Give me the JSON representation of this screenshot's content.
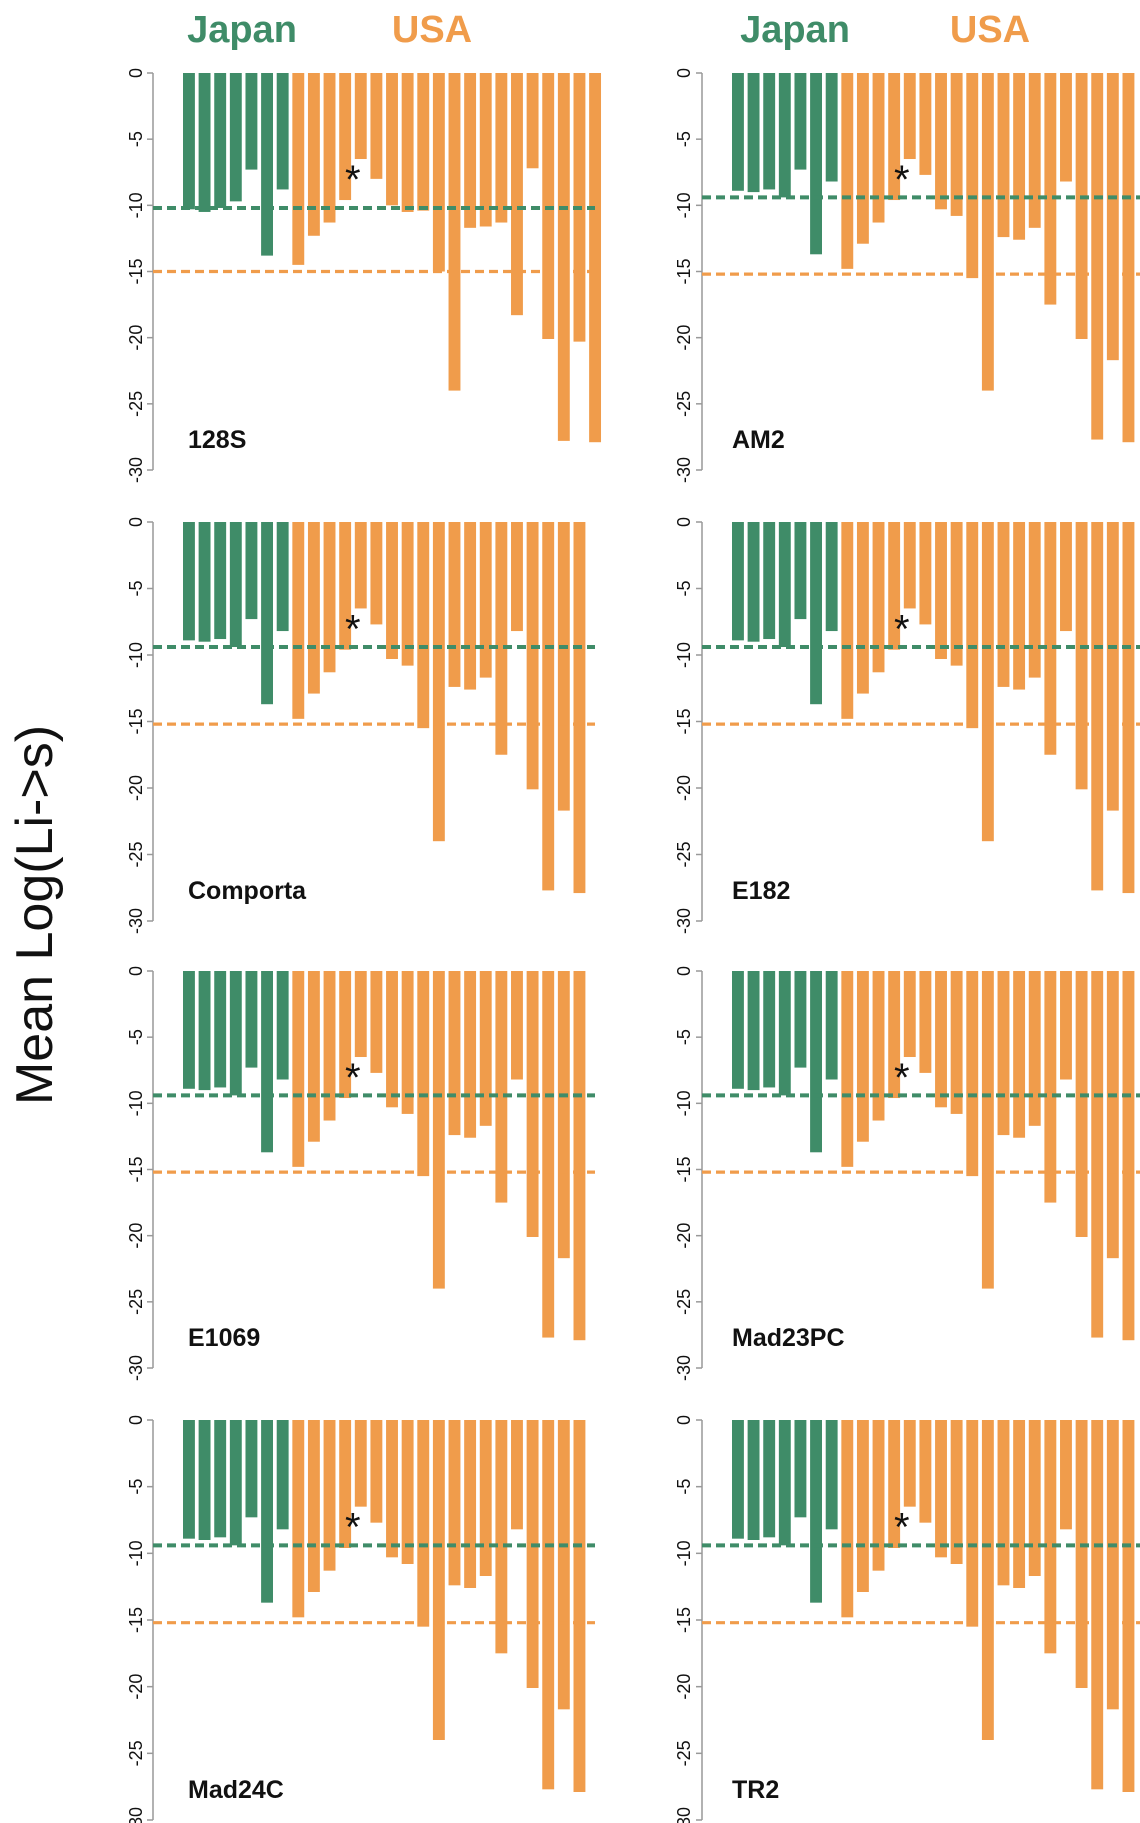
{
  "figure": {
    "y_axis_label": "Mean Log(Li->s)",
    "groups": [
      {
        "name": "Japan",
        "color": "#3f8c68"
      },
      {
        "name": "USA",
        "color": "#f09c4b"
      }
    ],
    "colors": {
      "japan": "#3f8c68",
      "usa": "#f09c4b",
      "axis": "#999999",
      "text": "#111111"
    },
    "marker": "*"
  },
  "chart_data": [
    {
      "type": "bar",
      "title": "128S",
      "ylim": [
        -30,
        0
      ],
      "yticks": [
        "0",
        "-5",
        "-10",
        "-15",
        "-20",
        "-25",
        "-30"
      ],
      "star_bar_index": 10,
      "series": [
        {
          "name": "Japan",
          "values": [
            -10.3,
            -10.5,
            -10.2,
            -9.7,
            -7.3,
            -13.8,
            -8.8
          ]
        },
        {
          "name": "USA",
          "values": [
            -14.5,
            -12.3,
            -11.3,
            -9.6,
            -6.5,
            -8.0,
            -10.0,
            -10.5,
            -10.4,
            -15.0,
            -24.0,
            -11.7,
            -11.6,
            -11.3,
            -18.3,
            -7.2,
            -20.1,
            -27.8,
            -20.3,
            -27.9
          ]
        }
      ],
      "reference_lines": [
        {
          "series": "Japan",
          "value": -10.2
        },
        {
          "series": "USA",
          "value": -15.0
        }
      ]
    },
    {
      "type": "bar",
      "title": "AM2",
      "ylim": [
        -30,
        0
      ],
      "yticks": [
        "0",
        "-5",
        "-10",
        "-15",
        "-20",
        "-25",
        "-30"
      ],
      "star_bar_index": 10,
      "series": [
        {
          "name": "Japan",
          "values": [
            -8.9,
            -9.0,
            -8.8,
            -9.4,
            -7.3,
            -13.7,
            -8.2
          ]
        },
        {
          "name": "USA",
          "values": [
            -14.8,
            -12.9,
            -11.3,
            -9.6,
            -6.5,
            -7.7,
            -10.3,
            -10.8,
            -15.5,
            -24.0,
            -12.4,
            -12.6,
            -11.7,
            -17.5,
            -8.2,
            -20.1,
            -27.7,
            -21.7,
            -27.9
          ]
        }
      ],
      "reference_lines": [
        {
          "series": "Japan",
          "value": -9.4
        },
        {
          "series": "USA",
          "value": -15.2
        }
      ]
    },
    {
      "type": "bar",
      "title": "Comporta",
      "ylim": [
        -30,
        0
      ],
      "yticks": [
        "0",
        "-5",
        "-10",
        "-15",
        "-20",
        "-25",
        "-30"
      ],
      "star_bar_index": 10,
      "series": [
        {
          "name": "Japan",
          "values": [
            -8.9,
            -9.0,
            -8.8,
            -9.4,
            -7.3,
            -13.7,
            -8.2
          ]
        },
        {
          "name": "USA",
          "values": [
            -14.8,
            -12.9,
            -11.3,
            -9.6,
            -6.5,
            -7.7,
            -10.3,
            -10.8,
            -15.5,
            -24.0,
            -12.4,
            -12.6,
            -11.7,
            -17.5,
            -8.2,
            -20.1,
            -27.7,
            -21.7,
            -27.9
          ]
        }
      ],
      "reference_lines": [
        {
          "series": "Japan",
          "value": -9.4
        },
        {
          "series": "USA",
          "value": -15.2
        }
      ]
    },
    {
      "type": "bar",
      "title": "E182",
      "ylim": [
        -30,
        0
      ],
      "yticks": [
        "0",
        "-5",
        "-10",
        "-15",
        "-20",
        "-25",
        "-30"
      ],
      "star_bar_index": 10,
      "series": [
        {
          "name": "Japan",
          "values": [
            -8.9,
            -9.0,
            -8.8,
            -9.4,
            -7.3,
            -13.7,
            -8.2
          ]
        },
        {
          "name": "USA",
          "values": [
            -14.8,
            -12.9,
            -11.3,
            -9.6,
            -6.5,
            -7.7,
            -10.3,
            -10.8,
            -15.5,
            -24.0,
            -12.4,
            -12.6,
            -11.7,
            -17.5,
            -8.2,
            -20.1,
            -27.7,
            -21.7,
            -27.9
          ]
        }
      ],
      "reference_lines": [
        {
          "series": "Japan",
          "value": -9.4
        },
        {
          "series": "USA",
          "value": -15.2
        }
      ]
    },
    {
      "type": "bar",
      "title": "E1069",
      "ylim": [
        -30,
        0
      ],
      "yticks": [
        "0",
        "-5",
        "-10",
        "-15",
        "-20",
        "-25",
        "-30"
      ],
      "star_bar_index": 10,
      "series": [
        {
          "name": "Japan",
          "values": [
            -8.9,
            -9.0,
            -8.8,
            -9.4,
            -7.3,
            -13.7,
            -8.2
          ]
        },
        {
          "name": "USA",
          "values": [
            -14.8,
            -12.9,
            -11.3,
            -9.6,
            -6.5,
            -7.7,
            -10.3,
            -10.8,
            -15.5,
            -24.0,
            -12.4,
            -12.6,
            -11.7,
            -17.5,
            -8.2,
            -20.1,
            -27.7,
            -21.7,
            -27.9
          ]
        }
      ],
      "reference_lines": [
        {
          "series": "Japan",
          "value": -9.4
        },
        {
          "series": "USA",
          "value": -15.2
        }
      ]
    },
    {
      "type": "bar",
      "title": "Mad23PC",
      "ylim": [
        -30,
        0
      ],
      "yticks": [
        "0",
        "-5",
        "-10",
        "-15",
        "-20",
        "-25",
        "-30"
      ],
      "star_bar_index": 10,
      "series": [
        {
          "name": "Japan",
          "values": [
            -8.9,
            -9.0,
            -8.8,
            -9.4,
            -7.3,
            -13.7,
            -8.2
          ]
        },
        {
          "name": "USA",
          "values": [
            -14.8,
            -12.9,
            -11.3,
            -9.6,
            -6.5,
            -7.7,
            -10.3,
            -10.8,
            -15.5,
            -24.0,
            -12.4,
            -12.6,
            -11.7,
            -17.5,
            -8.2,
            -20.1,
            -27.7,
            -21.7,
            -27.9
          ]
        }
      ],
      "reference_lines": [
        {
          "series": "Japan",
          "value": -9.4
        },
        {
          "series": "USA",
          "value": -15.2
        }
      ]
    },
    {
      "type": "bar",
      "title": "Mad24C",
      "ylim": [
        -30,
        0
      ],
      "yticks": [
        "0",
        "-5",
        "-10",
        "-15",
        "-20",
        "-25",
        "-30"
      ],
      "star_bar_index": 10,
      "series": [
        {
          "name": "Japan",
          "values": [
            -8.9,
            -9.0,
            -8.8,
            -9.4,
            -7.3,
            -13.7,
            -8.2
          ]
        },
        {
          "name": "USA",
          "values": [
            -14.8,
            -12.9,
            -11.3,
            -9.6,
            -6.5,
            -7.7,
            -10.3,
            -10.8,
            -15.5,
            -24.0,
            -12.4,
            -12.6,
            -11.7,
            -17.5,
            -8.2,
            -20.1,
            -27.7,
            -21.7,
            -27.9
          ]
        }
      ],
      "reference_lines": [
        {
          "series": "Japan",
          "value": -9.4
        },
        {
          "series": "USA",
          "value": -15.2
        }
      ]
    },
    {
      "type": "bar",
      "title": "TR2",
      "ylim": [
        -30,
        0
      ],
      "yticks": [
        "0",
        "-5",
        "-10",
        "-15",
        "-20",
        "-25",
        "-30"
      ],
      "star_bar_index": 10,
      "series": [
        {
          "name": "Japan",
          "values": [
            -8.9,
            -9.0,
            -8.8,
            -9.4,
            -7.3,
            -13.7,
            -8.2
          ]
        },
        {
          "name": "USA",
          "values": [
            -14.8,
            -12.9,
            -11.3,
            -9.6,
            -6.5,
            -7.7,
            -10.3,
            -10.8,
            -15.5,
            -24.0,
            -12.4,
            -12.6,
            -11.7,
            -17.5,
            -8.2,
            -20.1,
            -27.7,
            -21.7,
            -27.9
          ]
        }
      ],
      "reference_lines": [
        {
          "series": "Japan",
          "value": -9.4
        },
        {
          "series": "USA",
          "value": -15.2
        }
      ]
    }
  ]
}
